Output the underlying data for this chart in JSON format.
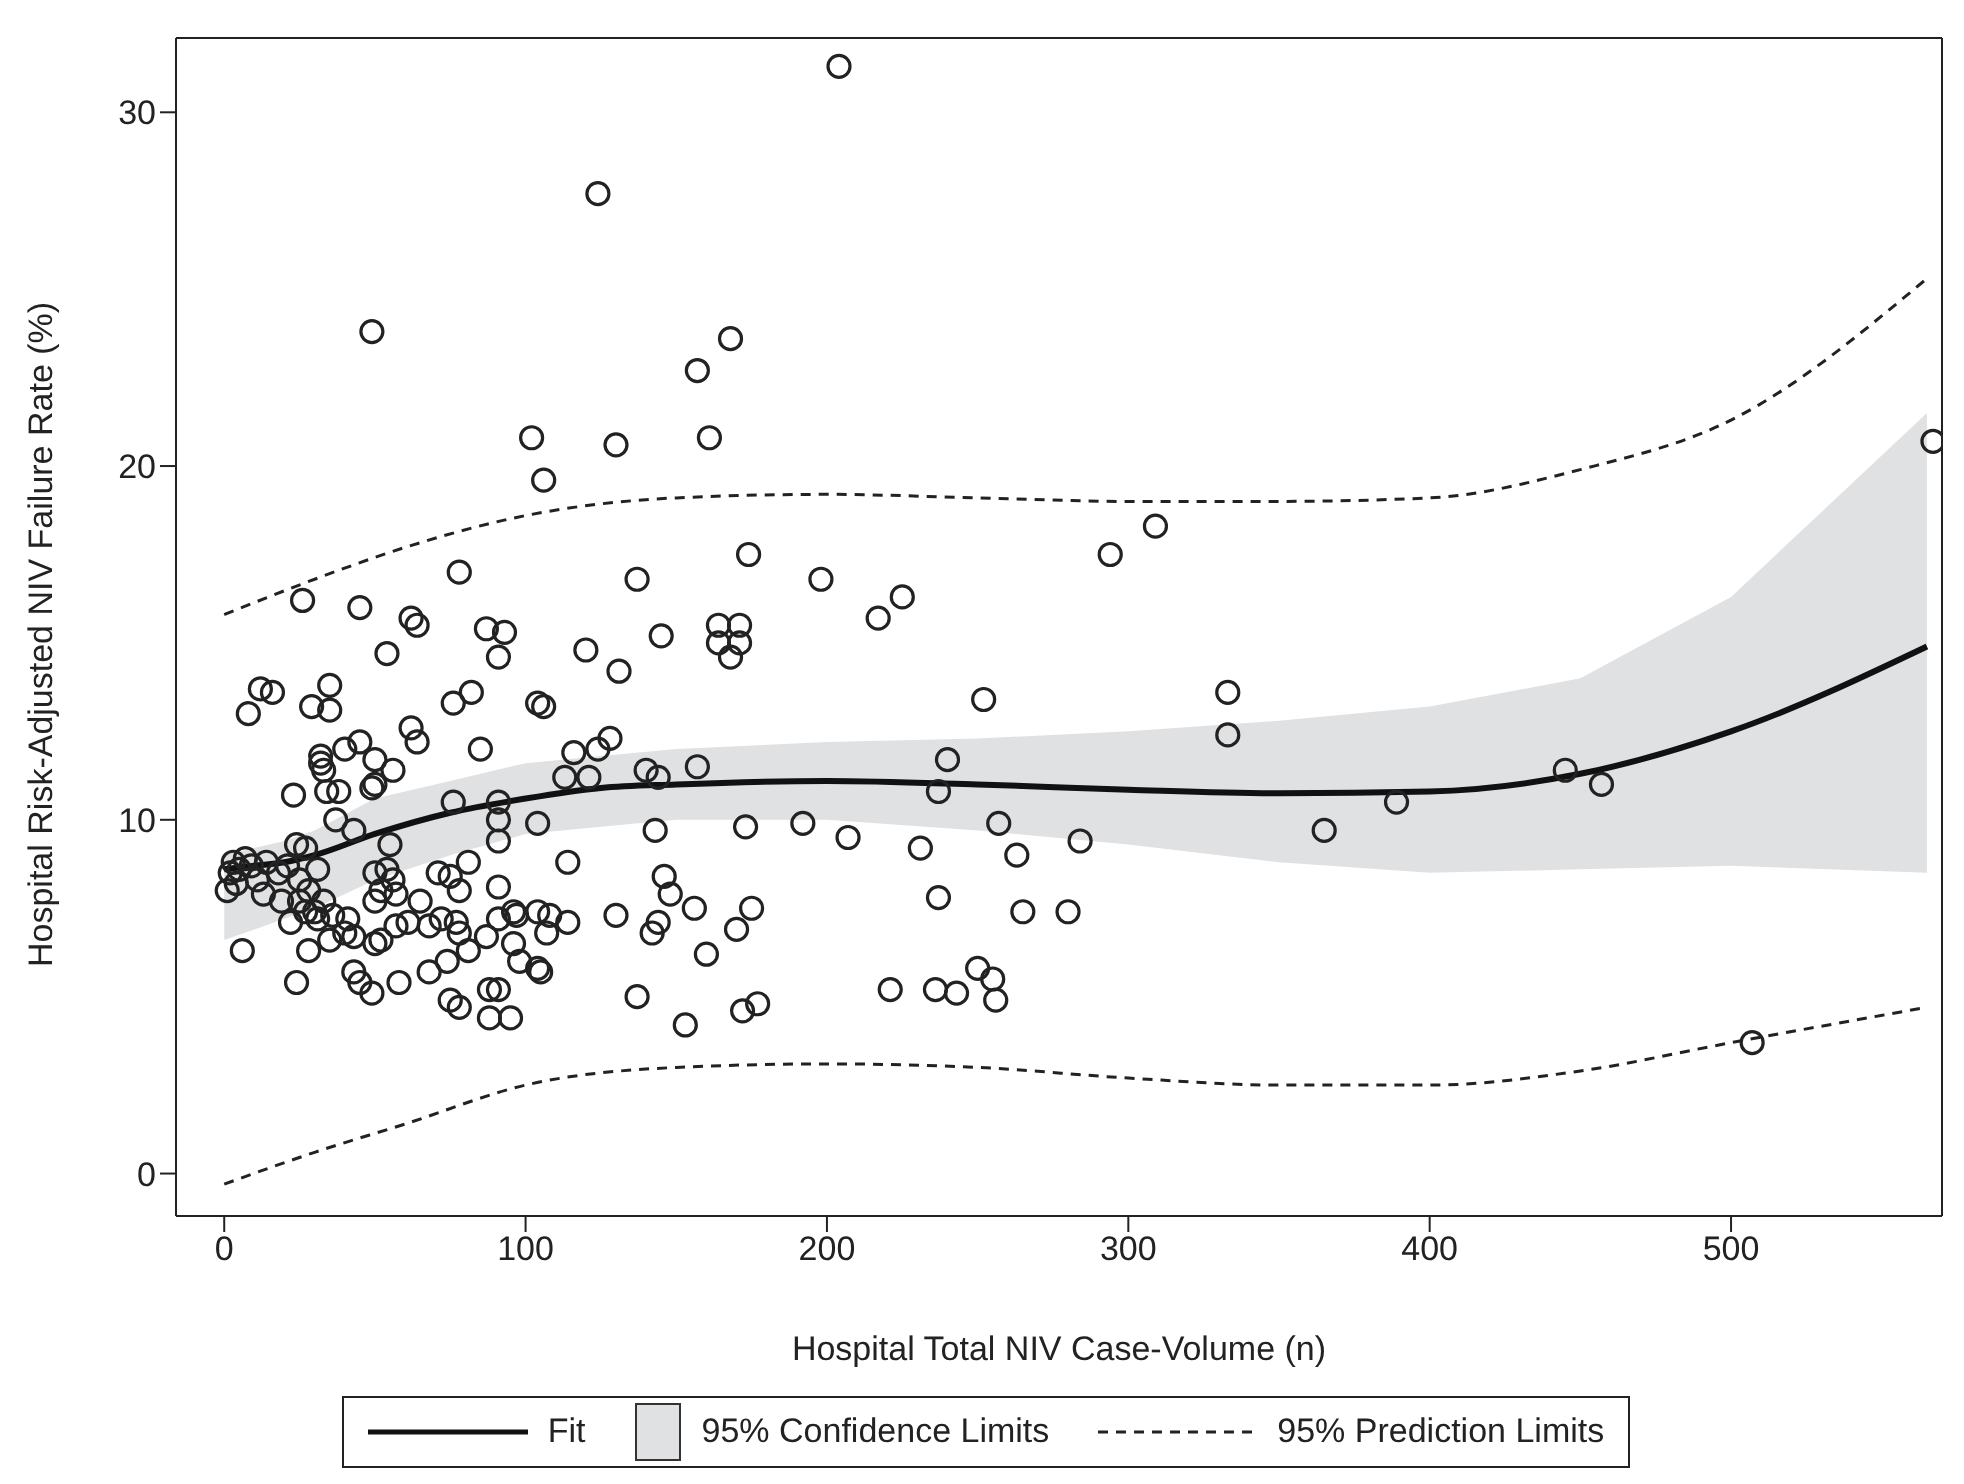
{
  "chart_data": {
    "type": "scatter",
    "xlabel": "Hospital Total NIV Case-Volume (n)",
    "annotations": [
      "95% Confidence Limits"
    ],
    "ylabel": "Hospital Risk-Adjusted NIV Failure Rate (%)",
    "xlim": [
      -16,
      570
    ],
    "ylim": [
      -1.2,
      32.1
    ],
    "xticks": [
      0,
      100,
      200,
      300,
      400,
      500
    ],
    "yticks": [
      0,
      10,
      20,
      30
    ],
    "grid": false,
    "legend": "bottom",
    "marker": "circle",
    "series": [
      {
        "color": "#222222",
        "x": [
          204,
          124,
          49,
          168,
          157,
          102,
          161,
          130,
          106,
          567,
          309,
          294,
          198,
          225,
          217,
          174,
          78,
          137,
          26,
          45,
          62,
          64,
          54,
          87,
          93,
          91,
          120,
          131,
          145,
          164,
          171,
          164,
          171,
          168,
          8,
          12,
          16,
          29,
          35,
          35,
          76,
          82,
          104,
          106,
          62,
          64,
          85,
          32,
          32,
          33,
          40,
          45,
          50,
          56,
          23,
          34,
          38,
          49,
          50,
          37,
          43,
          76,
          91,
          91,
          104,
          55,
          24,
          27,
          91,
          116,
          113,
          121,
          124,
          128,
          140,
          144,
          157,
          143,
          173,
          192,
          207,
          114,
          146,
          148,
          156,
          175,
          170,
          108,
          107,
          114,
          130,
          142,
          144,
          160,
          105,
          137,
          153,
          172,
          177,
          221,
          252,
          240,
          237,
          257,
          231,
          263,
          284,
          237,
          265,
          280,
          236,
          243,
          250,
          255,
          256,
          333,
          333,
          365,
          389,
          445,
          457,
          507,
          3,
          5,
          4,
          9,
          11,
          14,
          18,
          21,
          25,
          13,
          19,
          25,
          28,
          31,
          33,
          30,
          36,
          50,
          54,
          56,
          52,
          57,
          50,
          71,
          75,
          81,
          78,
          91,
          96,
          104,
          65,
          61,
          68,
          72,
          77,
          78,
          57,
          52,
          43,
          41,
          27,
          31,
          22,
          28,
          35,
          40,
          50,
          6,
          68,
          74,
          81,
          87,
          91,
          97,
          96,
          104,
          98,
          43,
          45,
          49,
          58,
          24,
          75,
          78,
          88,
          91,
          88,
          95,
          1,
          2,
          7
        ],
        "values": [
          31.3,
          27.7,
          23.8,
          23.6,
          22.7,
          20.8,
          20.8,
          20.6,
          19.6,
          20.7,
          18.3,
          17.5,
          16.8,
          16.3,
          15.7,
          17.5,
          17.0,
          16.8,
          16.2,
          16.0,
          15.7,
          15.5,
          14.7,
          15.4,
          15.3,
          14.6,
          14.8,
          14.2,
          15.2,
          15.5,
          15.5,
          15.0,
          15.0,
          14.6,
          13.0,
          13.7,
          13.6,
          13.2,
          13.8,
          13.1,
          13.3,
          13.6,
          13.3,
          13.2,
          12.6,
          12.2,
          12.0,
          11.8,
          11.6,
          11.4,
          12.0,
          12.2,
          11.7,
          11.4,
          10.7,
          10.8,
          10.8,
          10.9,
          11.0,
          10.0,
          9.7,
          10.5,
          10.5,
          10.0,
          9.9,
          9.3,
          9.3,
          9.2,
          9.4,
          11.9,
          11.2,
          11.2,
          12.0,
          12.3,
          11.4,
          11.2,
          11.5,
          9.7,
          9.8,
          9.9,
          9.5,
          8.8,
          8.4,
          7.9,
          7.5,
          7.5,
          6.9,
          7.3,
          6.8,
          7.1,
          7.3,
          6.8,
          7.1,
          6.2,
          5.7,
          5.0,
          4.2,
          4.6,
          4.8,
          5.2,
          13.4,
          11.7,
          10.8,
          9.9,
          9.2,
          9.0,
          9.4,
          7.8,
          7.4,
          7.4,
          5.2,
          5.1,
          5.8,
          5.5,
          4.9,
          13.6,
          12.4,
          9.7,
          10.5,
          11.4,
          11.0,
          3.7,
          8.8,
          8.6,
          8.2,
          8.7,
          8.3,
          8.8,
          8.5,
          8.7,
          8.3,
          7.9,
          7.7,
          7.7,
          8.0,
          8.6,
          7.7,
          7.4,
          7.3,
          8.5,
          8.6,
          8.3,
          8.0,
          7.9,
          7.7,
          8.5,
          8.4,
          8.8,
          8.0,
          8.1,
          7.4,
          7.4,
          7.7,
          7.1,
          7.0,
          7.2,
          7.1,
          6.8,
          7.0,
          6.6,
          6.7,
          7.2,
          7.4,
          7.2,
          7.1,
          6.3,
          6.6,
          6.8,
          6.5,
          6.3,
          5.7,
          6.0,
          6.3,
          6.7,
          7.2,
          7.3,
          6.5,
          5.8,
          6.0,
          5.7,
          5.4,
          5.1,
          5.4,
          5.4,
          4.9,
          4.7,
          5.2,
          5.2,
          4.4,
          4.4,
          8.0,
          8.5,
          8.9
        ]
      },
      {
        "type": "line",
        "name": "Fit",
        "color": "#111111",
        "line_style": "solid",
        "marker": "none",
        "x": [
          0,
          10,
          20,
          30,
          50,
          75,
          100,
          125,
          150,
          200,
          250,
          300,
          350,
          400,
          450,
          500,
          565
        ],
        "values": [
          8.6,
          8.7,
          8.8,
          9.0,
          9.6,
          10.2,
          10.6,
          10.9,
          11.0,
          11.1,
          11.0,
          10.85,
          10.75,
          10.8,
          11.3,
          12.5,
          14.9
        ],
        "lower": [
          6.6,
          6.9,
          7.2,
          7.5,
          8.3,
          9.0,
          9.6,
          9.8,
          10.0,
          10.0,
          9.7,
          9.3,
          8.8,
          8.5,
          8.6,
          8.7,
          8.5
        ],
        "upper": [
          9.0,
          9.2,
          9.4,
          9.7,
          10.6,
          11.1,
          11.6,
          11.8,
          12.0,
          12.2,
          12.3,
          12.5,
          12.8,
          13.2,
          14.0,
          16.3,
          21.5
        ]
      },
      {
        "type": "line",
        "name": "95% Prediction Limits",
        "color": "#222222",
        "line_style": "dashed",
        "marker": "none",
        "x": [
          0,
          30,
          60,
          100,
          150,
          200,
          250,
          300,
          350,
          400,
          450,
          500,
          565
        ],
        "values": [
          15.8,
          16.8,
          17.7,
          18.6,
          19.1,
          19.2,
          19.1,
          19.0,
          19.0,
          19.1,
          19.9,
          21.3,
          25.3
        ]
      },
      {
        "type": "line",
        "color": "#222222",
        "line_style": "dashed",
        "marker": "none",
        "x": [
          0,
          30,
          60,
          100,
          150,
          200,
          250,
          300,
          350,
          400,
          450,
          500,
          565
        ],
        "values": [
          -0.3,
          0.6,
          1.4,
          2.5,
          3.0,
          3.1,
          3.0,
          2.7,
          2.5,
          2.5,
          2.9,
          3.7,
          4.7
        ]
      }
    ]
  }
}
